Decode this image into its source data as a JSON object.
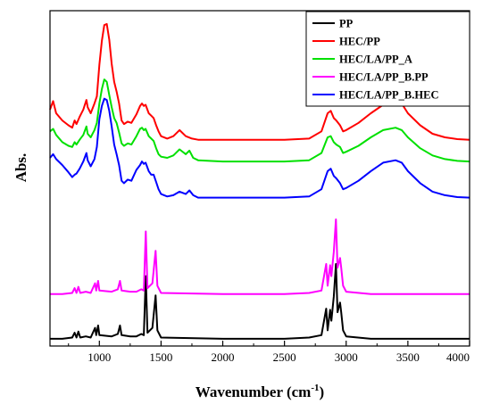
{
  "chart_data": {
    "type": "line",
    "title": "",
    "xlabel_main": "Wavenumber (cm",
    "xlabel_sup": "-1",
    "xlabel_end": ")",
    "ylabel": "Abs.",
    "xlim": [
      600,
      4000
    ],
    "x_ticks": [
      "1000",
      "1500",
      "2000",
      "2500",
      "3000",
      "3500",
      "4000"
    ],
    "y_ticks_labeled": false,
    "grid": false,
    "legend_position": "top-right",
    "series": [
      {
        "name": "PP",
        "color": "#000000",
        "offset": 0,
        "points": [
          [
            600,
            0.03
          ],
          [
            700,
            0.03
          ],
          [
            780,
            0.04
          ],
          [
            800,
            0.08
          ],
          [
            815,
            0.04
          ],
          [
            830,
            0.09
          ],
          [
            845,
            0.04
          ],
          [
            890,
            0.05
          ],
          [
            930,
            0.04
          ],
          [
            965,
            0.12
          ],
          [
            975,
            0.06
          ],
          [
            990,
            0.14
          ],
          [
            1000,
            0.06
          ],
          [
            1100,
            0.05
          ],
          [
            1150,
            0.07
          ],
          [
            1167,
            0.14
          ],
          [
            1180,
            0.06
          ],
          [
            1250,
            0.05
          ],
          [
            1300,
            0.05
          ],
          [
            1340,
            0.07
          ],
          [
            1360,
            0.06
          ],
          [
            1376,
            0.55
          ],
          [
            1390,
            0.08
          ],
          [
            1430,
            0.12
          ],
          [
            1456,
            0.39
          ],
          [
            1470,
            0.1
          ],
          [
            1500,
            0.04
          ],
          [
            2000,
            0.03
          ],
          [
            2500,
            0.03
          ],
          [
            2700,
            0.04
          ],
          [
            2800,
            0.06
          ],
          [
            2838,
            0.28
          ],
          [
            2850,
            0.1
          ],
          [
            2870,
            0.27
          ],
          [
            2880,
            0.18
          ],
          [
            2900,
            0.38
          ],
          [
            2917,
            0.65
          ],
          [
            2930,
            0.25
          ],
          [
            2950,
            0.33
          ],
          [
            2960,
            0.25
          ],
          [
            2975,
            0.1
          ],
          [
            3000,
            0.05
          ],
          [
            3200,
            0.03
          ],
          [
            3500,
            0.03
          ],
          [
            4000,
            0.03
          ]
        ]
      },
      {
        "name": "HEC/PP",
        "color": "#ff0000",
        "offset": 1.68,
        "points": [
          [
            600,
            0.25
          ],
          [
            625,
            0.32
          ],
          [
            650,
            0.22
          ],
          [
            700,
            0.16
          ],
          [
            750,
            0.12
          ],
          [
            780,
            0.1
          ],
          [
            800,
            0.16
          ],
          [
            815,
            0.13
          ],
          [
            840,
            0.19
          ],
          [
            870,
            0.25
          ],
          [
            895,
            0.33
          ],
          [
            905,
            0.27
          ],
          [
            930,
            0.22
          ],
          [
            960,
            0.3
          ],
          [
            980,
            0.36
          ],
          [
            1000,
            0.62
          ],
          [
            1020,
            0.82
          ],
          [
            1040,
            0.95
          ],
          [
            1060,
            0.96
          ],
          [
            1080,
            0.83
          ],
          [
            1100,
            0.63
          ],
          [
            1120,
            0.48
          ],
          [
            1140,
            0.4
          ],
          [
            1160,
            0.3
          ],
          [
            1180,
            0.16
          ],
          [
            1200,
            0.13
          ],
          [
            1230,
            0.15
          ],
          [
            1260,
            0.14
          ],
          [
            1300,
            0.21
          ],
          [
            1330,
            0.28
          ],
          [
            1345,
            0.3
          ],
          [
            1360,
            0.28
          ],
          [
            1375,
            0.29
          ],
          [
            1400,
            0.22
          ],
          [
            1420,
            0.2
          ],
          [
            1440,
            0.18
          ],
          [
            1460,
            0.12
          ],
          [
            1480,
            0.07
          ],
          [
            1500,
            0.03
          ],
          [
            1550,
            0.01
          ],
          [
            1600,
            0.03
          ],
          [
            1650,
            0.08
          ],
          [
            1700,
            0.03
          ],
          [
            1750,
            0.01
          ],
          [
            1800,
            0.0
          ],
          [
            2000,
            0.0
          ],
          [
            2500,
            0.0
          ],
          [
            2700,
            0.01
          ],
          [
            2800,
            0.07
          ],
          [
            2850,
            0.22
          ],
          [
            2875,
            0.24
          ],
          [
            2900,
            0.18
          ],
          [
            2920,
            0.16
          ],
          [
            2950,
            0.12
          ],
          [
            2975,
            0.07
          ],
          [
            3000,
            0.08
          ],
          [
            3100,
            0.14
          ],
          [
            3200,
            0.22
          ],
          [
            3300,
            0.29
          ],
          [
            3400,
            0.32
          ],
          [
            3450,
            0.3
          ],
          [
            3500,
            0.22
          ],
          [
            3600,
            0.12
          ],
          [
            3700,
            0.05
          ],
          [
            3800,
            0.02
          ],
          [
            3900,
            0.005
          ],
          [
            4000,
            0.0
          ]
        ]
      },
      {
        "name": "HEC/LA/PP_A",
        "color": "#00e000",
        "offset": 1.5,
        "points": [
          [
            600,
            0.25
          ],
          [
            625,
            0.27
          ],
          [
            650,
            0.22
          ],
          [
            700,
            0.16
          ],
          [
            750,
            0.13
          ],
          [
            780,
            0.12
          ],
          [
            800,
            0.16
          ],
          [
            815,
            0.14
          ],
          [
            840,
            0.18
          ],
          [
            870,
            0.22
          ],
          [
            895,
            0.29
          ],
          [
            905,
            0.23
          ],
          [
            930,
            0.2
          ],
          [
            960,
            0.26
          ],
          [
            980,
            0.32
          ],
          [
            1000,
            0.48
          ],
          [
            1020,
            0.6
          ],
          [
            1040,
            0.68
          ],
          [
            1060,
            0.66
          ],
          [
            1080,
            0.55
          ],
          [
            1100,
            0.45
          ],
          [
            1120,
            0.36
          ],
          [
            1140,
            0.32
          ],
          [
            1160,
            0.24
          ],
          [
            1180,
            0.15
          ],
          [
            1200,
            0.13
          ],
          [
            1230,
            0.15
          ],
          [
            1260,
            0.14
          ],
          [
            1300,
            0.21
          ],
          [
            1330,
            0.27
          ],
          [
            1345,
            0.28
          ],
          [
            1360,
            0.26
          ],
          [
            1375,
            0.27
          ],
          [
            1400,
            0.21
          ],
          [
            1420,
            0.19
          ],
          [
            1440,
            0.17
          ],
          [
            1460,
            0.11
          ],
          [
            1480,
            0.06
          ],
          [
            1500,
            0.04
          ],
          [
            1550,
            0.03
          ],
          [
            1600,
            0.05
          ],
          [
            1650,
            0.1
          ],
          [
            1700,
            0.06
          ],
          [
            1730,
            0.09
          ],
          [
            1760,
            0.03
          ],
          [
            1800,
            0.01
          ],
          [
            2000,
            0.0
          ],
          [
            2500,
            0.0
          ],
          [
            2700,
            0.01
          ],
          [
            2800,
            0.07
          ],
          [
            2850,
            0.2
          ],
          [
            2875,
            0.21
          ],
          [
            2900,
            0.16
          ],
          [
            2920,
            0.14
          ],
          [
            2950,
            0.12
          ],
          [
            2975,
            0.07
          ],
          [
            3000,
            0.08
          ],
          [
            3100,
            0.13
          ],
          [
            3200,
            0.2
          ],
          [
            3300,
            0.26
          ],
          [
            3400,
            0.28
          ],
          [
            3450,
            0.26
          ],
          [
            3500,
            0.2
          ],
          [
            3600,
            0.11
          ],
          [
            3700,
            0.05
          ],
          [
            3800,
            0.02
          ],
          [
            3900,
            0.005
          ],
          [
            4000,
            0.0
          ]
        ]
      },
      {
        "name": "HEC/LA/PP_B.PP",
        "color": "#ff00ff",
        "offset": 0.37,
        "points": [
          [
            600,
            0.03
          ],
          [
            700,
            0.03
          ],
          [
            780,
            0.04
          ],
          [
            800,
            0.08
          ],
          [
            815,
            0.04
          ],
          [
            830,
            0.09
          ],
          [
            845,
            0.04
          ],
          [
            890,
            0.05
          ],
          [
            930,
            0.04
          ],
          [
            965,
            0.12
          ],
          [
            975,
            0.06
          ],
          [
            990,
            0.14
          ],
          [
            1000,
            0.06
          ],
          [
            1100,
            0.05
          ],
          [
            1150,
            0.07
          ],
          [
            1167,
            0.14
          ],
          [
            1180,
            0.06
          ],
          [
            1250,
            0.05
          ],
          [
            1300,
            0.05
          ],
          [
            1340,
            0.07
          ],
          [
            1360,
            0.06
          ],
          [
            1376,
            0.55
          ],
          [
            1390,
            0.08
          ],
          [
            1430,
            0.12
          ],
          [
            1456,
            0.39
          ],
          [
            1470,
            0.1
          ],
          [
            1500,
            0.04
          ],
          [
            2000,
            0.03
          ],
          [
            2500,
            0.03
          ],
          [
            2700,
            0.04
          ],
          [
            2800,
            0.06
          ],
          [
            2838,
            0.28
          ],
          [
            2850,
            0.1
          ],
          [
            2870,
            0.27
          ],
          [
            2880,
            0.18
          ],
          [
            2900,
            0.38
          ],
          [
            2917,
            0.65
          ],
          [
            2930,
            0.25
          ],
          [
            2950,
            0.33
          ],
          [
            2960,
            0.25
          ],
          [
            2975,
            0.1
          ],
          [
            3000,
            0.05
          ],
          [
            3200,
            0.03
          ],
          [
            3500,
            0.03
          ],
          [
            4000,
            0.03
          ]
        ]
      },
      {
        "name": "HEC/LA/PP_B.HEC",
        "color": "#0000ff",
        "offset": 1.2,
        "points": [
          [
            600,
            0.33
          ],
          [
            625,
            0.36
          ],
          [
            650,
            0.32
          ],
          [
            700,
            0.27
          ],
          [
            750,
            0.21
          ],
          [
            780,
            0.17
          ],
          [
            800,
            0.19
          ],
          [
            815,
            0.2
          ],
          [
            840,
            0.24
          ],
          [
            870,
            0.3
          ],
          [
            895,
            0.37
          ],
          [
            905,
            0.31
          ],
          [
            930,
            0.26
          ],
          [
            960,
            0.32
          ],
          [
            980,
            0.42
          ],
          [
            1000,
            0.65
          ],
          [
            1020,
            0.76
          ],
          [
            1040,
            0.82
          ],
          [
            1060,
            0.81
          ],
          [
            1080,
            0.72
          ],
          [
            1100,
            0.59
          ],
          [
            1120,
            0.44
          ],
          [
            1140,
            0.36
          ],
          [
            1160,
            0.27
          ],
          [
            1180,
            0.14
          ],
          [
            1200,
            0.12
          ],
          [
            1230,
            0.15
          ],
          [
            1260,
            0.14
          ],
          [
            1300,
            0.23
          ],
          [
            1330,
            0.27
          ],
          [
            1345,
            0.3
          ],
          [
            1360,
            0.28
          ],
          [
            1375,
            0.29
          ],
          [
            1400,
            0.22
          ],
          [
            1420,
            0.19
          ],
          [
            1440,
            0.19
          ],
          [
            1460,
            0.13
          ],
          [
            1480,
            0.07
          ],
          [
            1500,
            0.03
          ],
          [
            1550,
            0.01
          ],
          [
            1600,
            0.02
          ],
          [
            1650,
            0.05
          ],
          [
            1700,
            0.03
          ],
          [
            1730,
            0.06
          ],
          [
            1760,
            0.02
          ],
          [
            1800,
            0.0
          ],
          [
            2000,
            0.0
          ],
          [
            2500,
            0.0
          ],
          [
            2700,
            0.01
          ],
          [
            2800,
            0.07
          ],
          [
            2850,
            0.22
          ],
          [
            2875,
            0.24
          ],
          [
            2900,
            0.18
          ],
          [
            2920,
            0.16
          ],
          [
            2950,
            0.12
          ],
          [
            2975,
            0.07
          ],
          [
            3000,
            0.08
          ],
          [
            3100,
            0.14
          ],
          [
            3200,
            0.22
          ],
          [
            3300,
            0.29
          ],
          [
            3400,
            0.31
          ],
          [
            3450,
            0.29
          ],
          [
            3500,
            0.22
          ],
          [
            3600,
            0.12
          ],
          [
            3700,
            0.05
          ],
          [
            3800,
            0.02
          ],
          [
            3900,
            0.005
          ],
          [
            4000,
            0.0
          ]
        ]
      }
    ]
  }
}
